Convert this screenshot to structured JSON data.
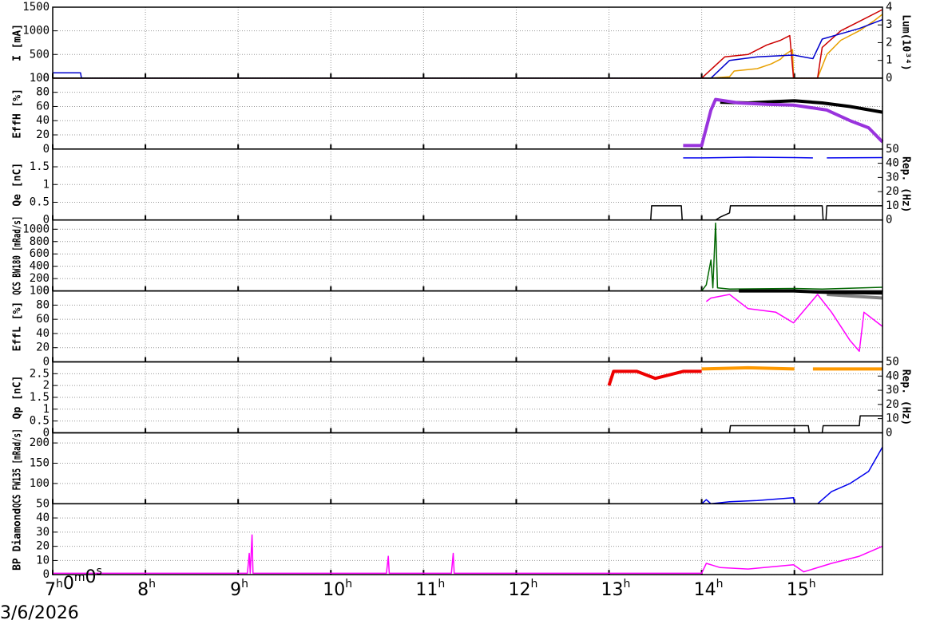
{
  "chart_data": [
    {
      "type": "line",
      "ylabel": "I [mA]",
      "y2label": "Lum(10³⁴)",
      "ylim": [
        0,
        1500
      ],
      "yticks": [
        0,
        500,
        1000,
        1500
      ],
      "y2lim": [
        0,
        4
      ],
      "y2ticks": [
        0,
        1,
        2,
        3,
        4
      ],
      "series": [
        {
          "color": "#e8a000",
          "x": [
            7,
            14.1,
            14.3,
            14.35,
            14.6,
            14.75,
            14.85,
            14.9,
            14.98,
            14.99,
            15.25,
            15.35,
            15.5,
            15.7,
            15.85,
            15.95
          ],
          "values": [
            0,
            0,
            30,
            150,
            200,
            300,
            400,
            500,
            600,
            0,
            0,
            500,
            800,
            1000,
            1200,
            1350
          ]
        },
        {
          "color": "#cc0000",
          "x": [
            7,
            14.0,
            14.25,
            14.5,
            14.7,
            14.85,
            14.95,
            14.99,
            15.25,
            15.3,
            15.5,
            15.7,
            15.95
          ],
          "values": [
            0,
            0,
            450,
            500,
            700,
            800,
            900,
            0,
            0,
            650,
            1000,
            1200,
            1450
          ]
        },
        {
          "color": "#0000cc",
          "axis": "y2",
          "x": [
            7,
            7.3,
            7.31,
            14.1,
            14.3,
            14.6,
            14.99,
            15.2,
            15.3,
            15.5,
            15.7,
            15.95
          ],
          "values": [
            0.3,
            0.3,
            0,
            0,
            1,
            1.2,
            1.3,
            1.1,
            2.2,
            2.5,
            2.8,
            3.3
          ]
        }
      ]
    },
    {
      "type": "line",
      "ylabel": "EffH [%]",
      "ylim": [
        0,
        100
      ],
      "yticks": [
        0,
        20,
        40,
        60,
        80,
        100
      ],
      "series": [
        {
          "color": "#000000",
          "x": [
            14.2,
            14.5,
            14.8,
            15.0,
            15.3,
            15.6,
            15.95
          ],
          "values": [
            66,
            65,
            67,
            68,
            65,
            60,
            52
          ]
        },
        {
          "color": "#9933dd",
          "x": [
            13.8,
            14.0,
            14.05,
            14.1,
            14.15,
            14.4,
            14.7,
            14.99,
            15.35,
            15.6,
            15.8,
            15.95
          ],
          "values": [
            5,
            5,
            30,
            55,
            70,
            65,
            63,
            62,
            55,
            40,
            30,
            10
          ]
        }
      ]
    },
    {
      "type": "line",
      "ylabel": "Qe [nC]",
      "y2label": "Rep. (Hz)",
      "ylim": [
        0,
        2
      ],
      "yticks": [
        0,
        0.5,
        1,
        1.5
      ],
      "y2lim": [
        0,
        50
      ],
      "y2ticks": [
        0,
        10,
        20,
        30,
        40,
        50
      ],
      "series": [
        {
          "color": "#0000ee",
          "x": [
            13.8,
            14.0,
            14.5,
            15.0,
            15.2,
            15.27,
            15.35,
            15.95
          ],
          "values": [
            1.75,
            1.75,
            1.77,
            1.76,
            1.75,
            null,
            1.75,
            1.76
          ]
        },
        {
          "color": "#000000",
          "axis": "y2",
          "x": [
            7,
            13.45,
            13.46,
            13.78,
            13.79,
            14.15,
            14.2,
            14.3,
            14.31,
            15.3,
            15.31,
            15.34,
            15.35,
            15.95
          ],
          "values": [
            0,
            0,
            10,
            10,
            0,
            0,
            2,
            5,
            10,
            10,
            0,
            0,
            10,
            10
          ]
        }
      ]
    },
    {
      "type": "line",
      "ylabel": "QCS BW180 [mRad/s]",
      "ylim": [
        0,
        1150
      ],
      "yticks": [
        0,
        200,
        400,
        600,
        800,
        1000
      ],
      "series": [
        {
          "color": "#006600",
          "x": [
            14.0,
            14.05,
            14.1,
            14.12,
            14.15,
            14.17,
            14.3,
            15.0,
            15.3,
            15.95
          ],
          "values": [
            0,
            100,
            500,
            50,
            1100,
            50,
            30,
            40,
            30,
            60
          ]
        }
      ]
    },
    {
      "type": "line",
      "ylabel": "EffL [%]",
      "ylim": [
        0,
        100
      ],
      "yticks": [
        0,
        20,
        40,
        60,
        80,
        100
      ],
      "series": [
        {
          "color": "#ff00ff",
          "x": [
            14.05,
            14.1,
            14.3,
            14.5,
            14.8,
            14.99,
            15.25,
            15.4,
            15.6,
            15.7,
            15.75,
            15.95
          ],
          "values": [
            85,
            90,
            95,
            75,
            70,
            55,
            95,
            70,
            30,
            15,
            70,
            50
          ]
        },
        {
          "color": "#808080",
          "x": [
            15.35,
            15.95
          ],
          "values": [
            95,
            90
          ]
        },
        {
          "color": "#000000",
          "x": [
            14.4,
            14.99,
            15.35,
            15.95
          ],
          "values": [
            100,
            100,
            98,
            97
          ]
        }
      ]
    },
    {
      "type": "line",
      "ylabel": "Qp [nC]",
      "y2label": "Rep. (Hz)",
      "ylim": [
        0,
        3
      ],
      "yticks": [
        0,
        0.5,
        1,
        1.5,
        2,
        2.5
      ],
      "y2lim": [
        0,
        50
      ],
      "y2ticks": [
        0,
        10,
        20,
        30,
        40,
        50
      ],
      "series": [
        {
          "color": "#ee0000",
          "x": [
            13.0,
            13.05,
            13.3,
            13.5,
            13.8,
            14.0
          ],
          "values": [
            2.0,
            2.6,
            2.6,
            2.3,
            2.6,
            2.6
          ]
        },
        {
          "color": "#ff9900",
          "x": [
            14.0,
            14.5,
            15.0,
            15.1,
            15.2,
            15.95
          ],
          "values": [
            2.7,
            2.75,
            2.7,
            null,
            2.7,
            2.7
          ]
        },
        {
          "color": "#000000",
          "axis": "y2",
          "x": [
            7,
            14.3,
            14.31,
            15.15,
            15.16,
            15.3,
            15.31,
            15.7,
            15.71,
            15.95
          ],
          "values": [
            0,
            0,
            5,
            5,
            0,
            0,
            5,
            5,
            12,
            12
          ]
        }
      ]
    },
    {
      "type": "line",
      "ylabel": "QCS FW135 [mRad/s]",
      "ylim": [
        50,
        225
      ],
      "yticks": [
        50,
        100,
        150,
        200
      ],
      "series": [
        {
          "color": "#0000ee",
          "x": [
            7,
            14.0,
            14.05,
            14.1,
            14.3,
            14.6,
            14.99,
            15.0,
            15.25,
            15.4,
            15.6,
            15.8,
            15.95
          ],
          "values": [
            50,
            50,
            60,
            50,
            55,
            58,
            65,
            50,
            50,
            80,
            100,
            130,
            190
          ]
        }
      ]
    },
    {
      "type": "line",
      "ylabel": "BP Diamond",
      "ylim": [
        0,
        50
      ],
      "yticks": [
        0,
        10,
        20,
        30,
        40
      ],
      "xlim": [
        7,
        15.95
      ],
      "xticks": [
        {
          "value": 7,
          "label": "7h0m0s"
        },
        {
          "value": 8,
          "label": "8h"
        },
        {
          "value": 9,
          "label": "9h"
        },
        {
          "value": 10,
          "label": "10h"
        },
        {
          "value": 11,
          "label": "11h"
        },
        {
          "value": 12,
          "label": "12h"
        },
        {
          "value": 13,
          "label": "13h"
        },
        {
          "value": 14,
          "label": "14h"
        },
        {
          "value": 15,
          "label": "15h"
        }
      ],
      "xlabel": "3/6/2026",
      "series": [
        {
          "color": "#ff00ff",
          "x": [
            7,
            9.1,
            9.12,
            9.13,
            9.15,
            9.16,
            10.6,
            10.62,
            10.63,
            11.3,
            11.32,
            11.33,
            14.0,
            14.05,
            14.2,
            14.5,
            14.99,
            15.1,
            15.4,
            15.7,
            15.95
          ],
          "values": [
            1,
            1,
            15,
            1,
            28,
            1,
            1,
            13,
            1,
            1,
            15,
            1,
            1,
            8,
            5,
            4,
            7,
            2,
            8,
            13,
            20
          ]
        }
      ]
    }
  ]
}
